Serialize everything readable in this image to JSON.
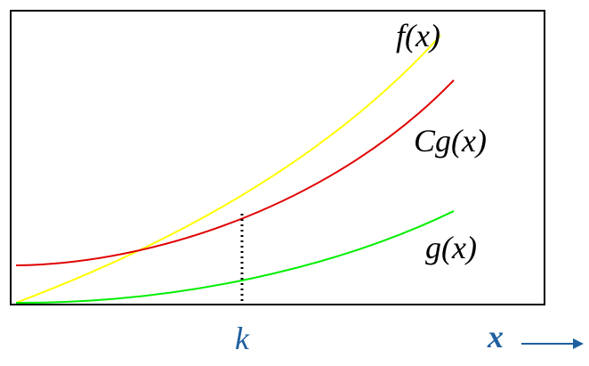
{
  "curves": {
    "f": "f(x)",
    "cg": "Cg(x)",
    "g": "g(x)"
  },
  "axis": {
    "k": "k",
    "x": "x"
  }
}
